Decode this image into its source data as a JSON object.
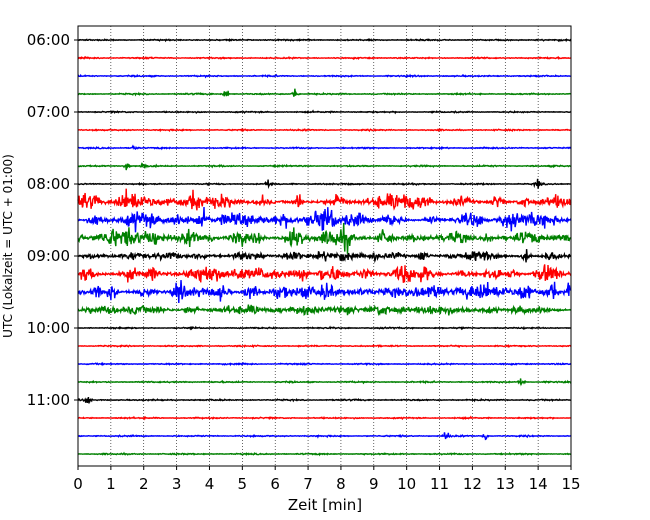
{
  "chart_data": {
    "type": "line",
    "subtype": "helicorder-seismogram",
    "title": "",
    "xlabel": "Zeit  [min]",
    "ylabel": "UTC (Lokalzeit = UTC + 01:00)",
    "xlim": [
      0,
      15
    ],
    "x_ticks": [
      0,
      1,
      2,
      3,
      4,
      5,
      6,
      7,
      8,
      9,
      10,
      11,
      12,
      13,
      14,
      15
    ],
    "y_tick_labels": [
      "06:00",
      "07:00",
      "08:00",
      "09:00",
      "10:00",
      "11:00"
    ],
    "vertical_grid": "dotted, every minute",
    "trace_colors": [
      "#000000",
      "#ff0000",
      "#0000ff",
      "#008000"
    ],
    "rows": [
      {
        "time": "06:00",
        "color": "#000000",
        "activity": "low"
      },
      {
        "time": "06:15",
        "color": "#ff0000",
        "activity": "low"
      },
      {
        "time": "06:30",
        "color": "#0000ff",
        "activity": "low"
      },
      {
        "time": "06:45",
        "color": "#008000",
        "activity": "low",
        "events_min": [
          4.5,
          6.6
        ]
      },
      {
        "time": "07:00",
        "color": "#000000",
        "activity": "low"
      },
      {
        "time": "07:15",
        "color": "#ff0000",
        "activity": "low"
      },
      {
        "time": "07:30",
        "color": "#0000ff",
        "activity": "low",
        "events_min": [
          1.7
        ]
      },
      {
        "time": "07:45",
        "color": "#008000",
        "activity": "low",
        "events_min": [
          1.5,
          2.0
        ]
      },
      {
        "time": "08:00",
        "color": "#000000",
        "activity": "low",
        "events_min": [
          5.8,
          14.0
        ]
      },
      {
        "time": "08:15",
        "color": "#ff0000",
        "activity": "high"
      },
      {
        "time": "08:30",
        "color": "#0000ff",
        "activity": "high"
      },
      {
        "time": "08:45",
        "color": "#008000",
        "activity": "high"
      },
      {
        "time": "09:00",
        "color": "#000000",
        "activity": "medium"
      },
      {
        "time": "09:15",
        "color": "#ff0000",
        "activity": "high"
      },
      {
        "time": "09:30",
        "color": "#0000ff",
        "activity": "high"
      },
      {
        "time": "09:45",
        "color": "#008000",
        "activity": "medium"
      },
      {
        "time": "10:00",
        "color": "#000000",
        "activity": "low"
      },
      {
        "time": "10:15",
        "color": "#ff0000",
        "activity": "low"
      },
      {
        "time": "10:30",
        "color": "#0000ff",
        "activity": "low"
      },
      {
        "time": "10:45",
        "color": "#008000",
        "activity": "low",
        "events_min": [
          13.5
        ]
      },
      {
        "time": "11:00",
        "color": "#000000",
        "activity": "low",
        "events_min": [
          0.3
        ]
      },
      {
        "time": "11:15",
        "color": "#ff0000",
        "activity": "low"
      },
      {
        "time": "11:30",
        "color": "#0000ff",
        "activity": "low",
        "events_min": [
          11.2,
          12.4
        ]
      },
      {
        "time": "11:45",
        "color": "#008000",
        "activity": "low"
      }
    ]
  }
}
